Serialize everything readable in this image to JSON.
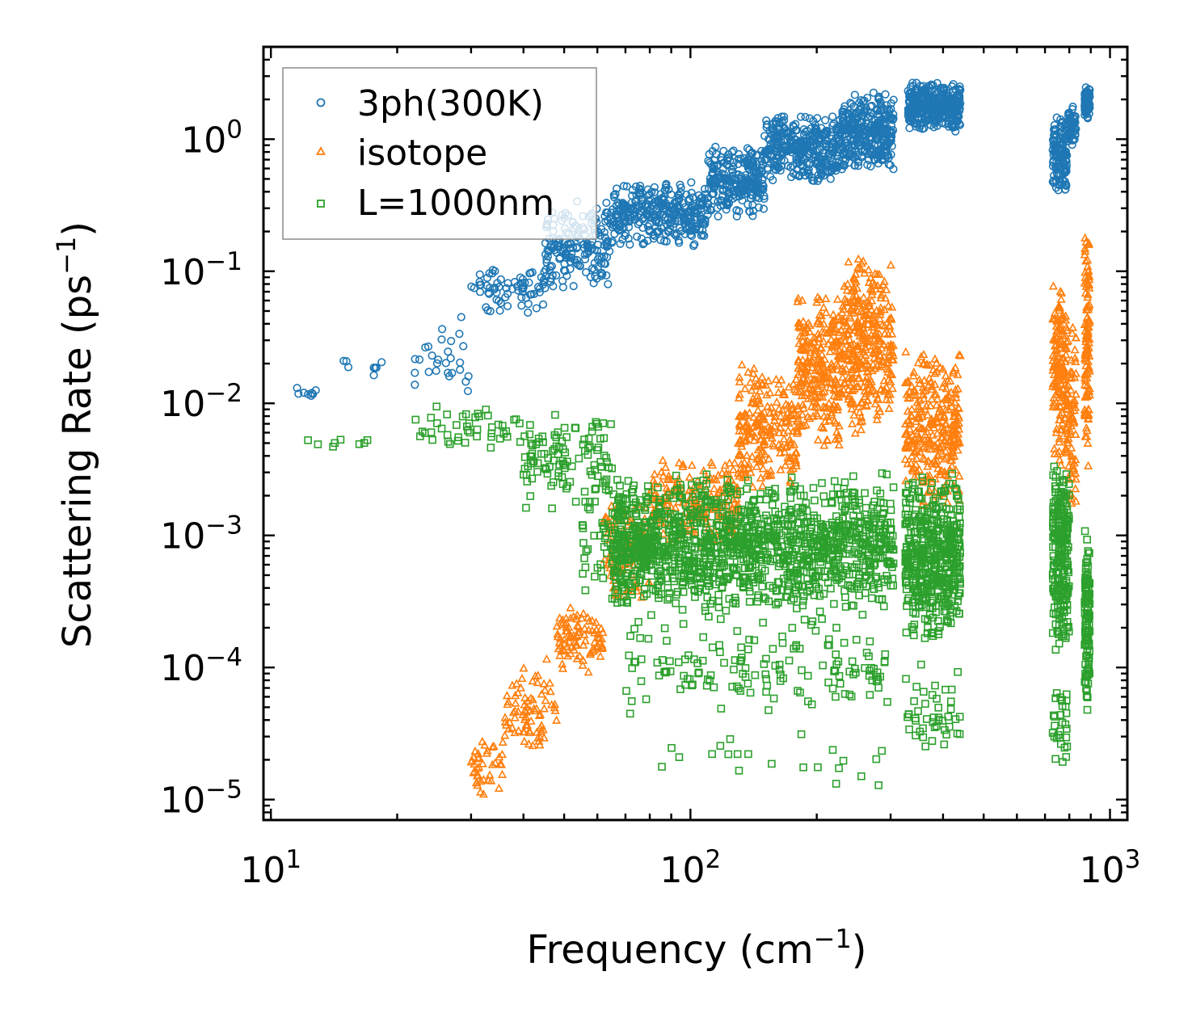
{
  "chart_data": {
    "type": "scatter",
    "title": "",
    "xlabel": "Frequency (cm",
    "xlabel_sup": "−1",
    "xlabel_tail": ")",
    "ylabel": "Scattering Rate (ps",
    "ylabel_sup": "−1",
    "ylabel_tail": ")",
    "xscale": "log",
    "yscale": "log",
    "xlim": [
      9.6,
      1100
    ],
    "ylim": [
      7e-06,
      5.0
    ],
    "x_ticks": [
      {
        "value": 10,
        "base": "10",
        "exp": "1"
      },
      {
        "value": 100,
        "base": "10",
        "exp": "2"
      },
      {
        "value": 1000,
        "base": "10",
        "exp": "3"
      }
    ],
    "y_ticks": [
      {
        "value": 1,
        "base": "10",
        "exp": "0"
      },
      {
        "value": 0.1,
        "base": "10",
        "exp": "−1"
      },
      {
        "value": 0.01,
        "base": "10",
        "exp": "−2"
      },
      {
        "value": 0.001,
        "base": "10",
        "exp": "−3"
      },
      {
        "value": 0.0001,
        "base": "10",
        "exp": "−4"
      },
      {
        "value": 1e-05,
        "base": "10",
        "exp": "−5"
      }
    ],
    "grid": false,
    "legend_position": "top-left",
    "series": [
      {
        "name": "3ph(300K)",
        "marker": "circle",
        "color": "#1f77b4",
        "clusters": [
          {
            "x": [
              11.3,
              12.8
            ],
            "y": [
              0.01,
              0.014
            ],
            "n": 8
          },
          {
            "x": [
              14,
              18.5
            ],
            "y": [
              0.015,
              0.025
            ],
            "n": 8
          },
          {
            "x": [
              22,
              30
            ],
            "y": [
              0.008,
              0.055
            ],
            "n": 28
          },
          {
            "x": [
              30,
              45
            ],
            "y": [
              0.045,
              0.12
            ],
            "n": 70
          },
          {
            "x": [
              45,
              65
            ],
            "y": [
              0.07,
              0.35
            ],
            "n": 180
          },
          {
            "x": [
              65,
              110
            ],
            "y": [
              0.15,
              0.5
            ],
            "n": 320
          },
          {
            "x": [
              110,
              150
            ],
            "y": [
              0.25,
              0.9
            ],
            "n": 260
          },
          {
            "x": [
              150,
              230
            ],
            "y": [
              0.45,
              1.6
            ],
            "n": 360
          },
          {
            "x": [
              230,
              305
            ],
            "y": [
              0.55,
              2.4
            ],
            "n": 320
          },
          {
            "x": [
              330,
              440
            ],
            "y": [
              1.1,
              2.8
            ],
            "n": 360
          },
          {
            "x": [
              730,
              790
            ],
            "y": [
              0.38,
              1.5
            ],
            "n": 140
          },
          {
            "x": [
              790,
              830
            ],
            "y": [
              0.9,
              1.8
            ],
            "n": 60
          },
          {
            "x": [
              870,
              895
            ],
            "y": [
              1.4,
              2.6
            ],
            "n": 100
          }
        ]
      },
      {
        "name": "isotope",
        "marker": "triangle",
        "color": "#ff7f0e",
        "clusters": [
          {
            "x": [
              30,
              36
            ],
            "y": [
              1e-05,
              3e-05
            ],
            "n": 40
          },
          {
            "x": [
              36,
              48
            ],
            "y": [
              2e-05,
              0.00012
            ],
            "n": 80
          },
          {
            "x": [
              48,
              62
            ],
            "y": [
              9e-05,
              0.0003
            ],
            "n": 90
          },
          {
            "x": [
              62,
              80
            ],
            "y": [
              0.00025,
              0.002
            ],
            "n": 120
          },
          {
            "x": [
              80,
              130
            ],
            "y": [
              0.0008,
              0.004
            ],
            "n": 200
          },
          {
            "x": [
              130,
              180
            ],
            "y": [
              0.002,
              0.02
            ],
            "n": 220
          },
          {
            "x": [
              180,
              230
            ],
            "y": [
              0.004,
              0.08
            ],
            "n": 260
          },
          {
            "x": [
              230,
              305
            ],
            "y": [
              0.005,
              0.15
            ],
            "n": 340
          },
          {
            "x": [
              325,
              440
            ],
            "y": [
              0.0015,
              0.03
            ],
            "n": 300
          },
          {
            "x": [
              730,
              790
            ],
            "y": [
              0.003,
              0.1
            ],
            "n": 160
          },
          {
            "x": [
              790,
              830
            ],
            "y": [
              0.0015,
              0.04
            ],
            "n": 80
          },
          {
            "x": [
              870,
              895
            ],
            "y": [
              0.003,
              0.24
            ],
            "n": 120
          }
        ]
      },
      {
        "name": "L=1000nm",
        "marker": "square",
        "color": "#2ca02c",
        "clusters": [
          {
            "x": [
              11.3,
              18.5
            ],
            "y": [
              0.0046,
              0.0055
            ],
            "n": 8
          },
          {
            "x": [
              22,
              40
            ],
            "y": [
              0.004,
              0.01
            ],
            "n": 45
          },
          {
            "x": [
              40,
              65
            ],
            "y": [
              0.0015,
              0.009
            ],
            "n": 110
          },
          {
            "x": [
              55,
              80
            ],
            "y": [
              0.0003,
              0.003
            ],
            "n": 90
          },
          {
            "x": [
              65,
              305
            ],
            "y": [
              0.00025,
              0.003
            ],
            "n": 1300
          },
          {
            "x": [
              70,
              305
            ],
            "y": [
              4e-05,
              0.0003
            ],
            "n": 160
          },
          {
            "x": [
              70,
              305
            ],
            "y": [
              1.1e-05,
              4e-05
            ],
            "n": 22
          },
          {
            "x": [
              325,
              440
            ],
            "y": [
              0.00015,
              0.003
            ],
            "n": 480
          },
          {
            "x": [
              325,
              440
            ],
            "y": [
              1.5e-05,
              0.00012
            ],
            "n": 45
          },
          {
            "x": [
              730,
              800
            ],
            "y": [
              0.00013,
              0.004
            ],
            "n": 220
          },
          {
            "x": [
              730,
              800
            ],
            "y": [
              1.3e-05,
              0.0001
            ],
            "n": 30
          },
          {
            "x": [
              870,
              895
            ],
            "y": [
              4e-05,
              0.0016
            ],
            "n": 120
          }
        ]
      }
    ]
  }
}
